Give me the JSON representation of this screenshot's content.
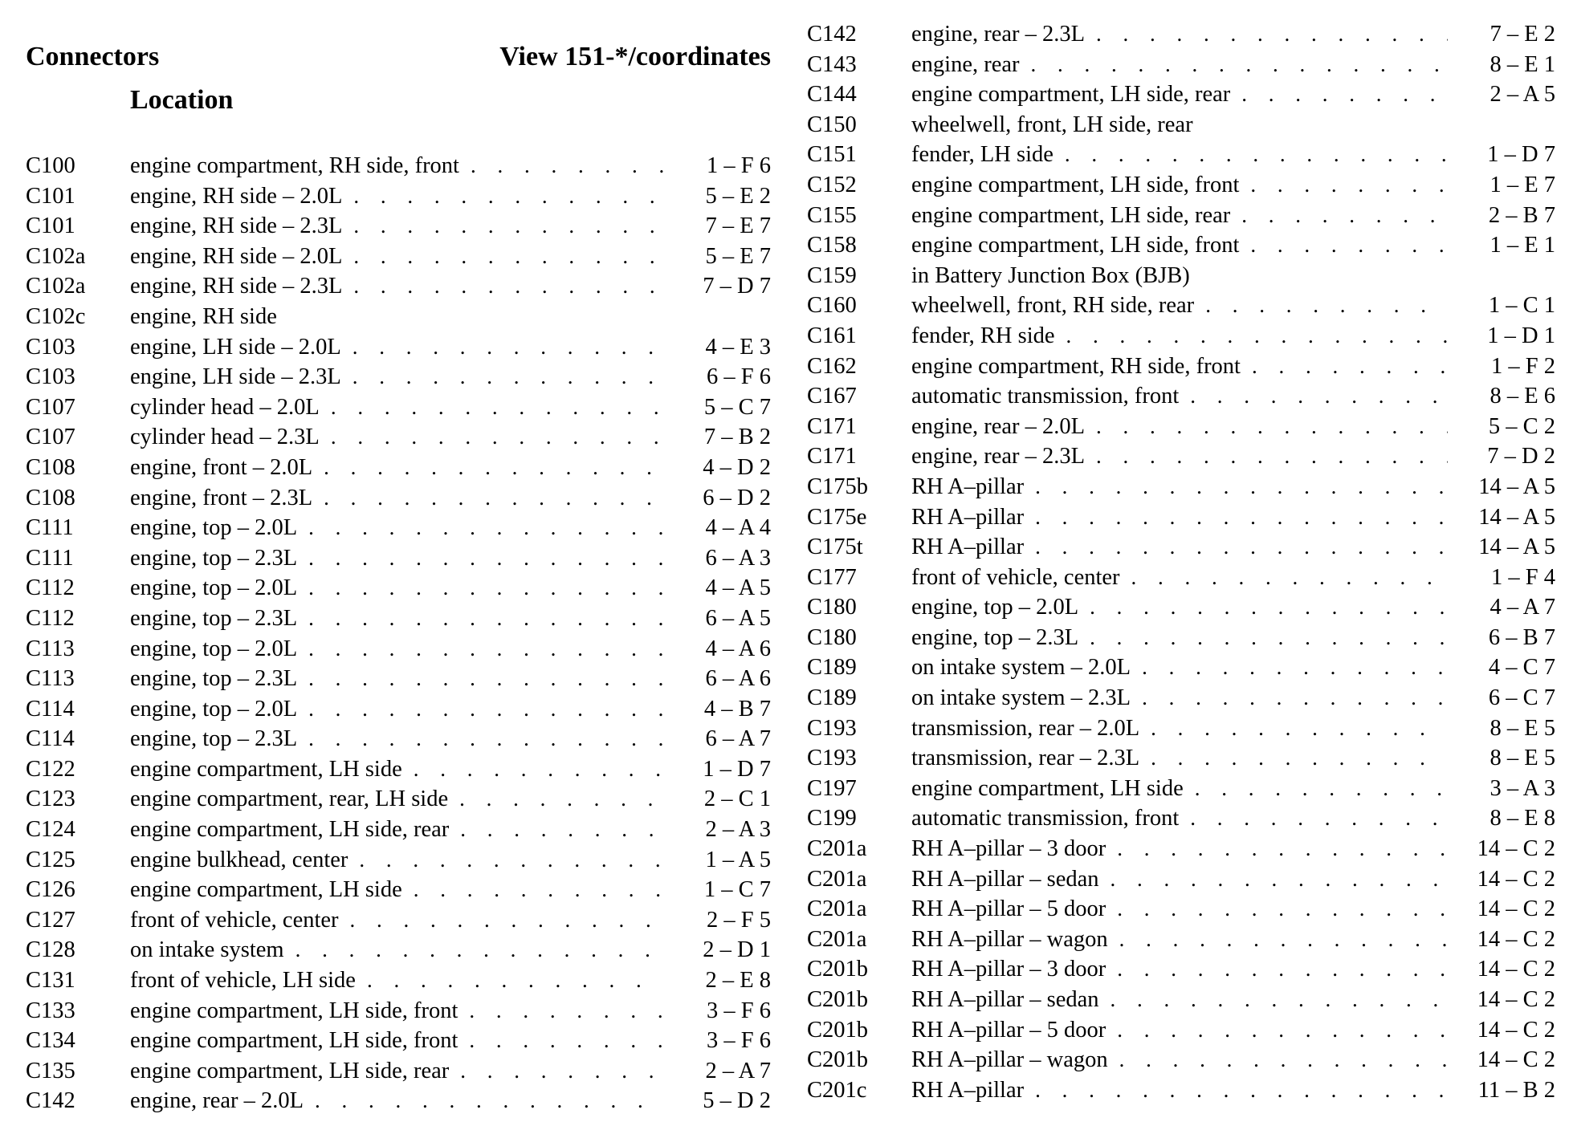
{
  "header": {
    "left_title": "Connectors",
    "right_title": "View 151-*/coordinates",
    "location_label": "Location"
  },
  "left_rows": [
    {
      "id": "C100",
      "location": "engine compartment, RH side, front",
      "coord": "1 – F 6"
    },
    {
      "id": "C101",
      "location": "engine, RH side – 2.0L",
      "coord": "5 – E 2"
    },
    {
      "id": "C101",
      "location": "engine, RH side – 2.3L",
      "coord": "7 – E 7"
    },
    {
      "id": "C102a",
      "location": "engine, RH side – 2.0L",
      "coord": "5 – E 7"
    },
    {
      "id": "C102a",
      "location": "engine, RH side – 2.3L",
      "coord": "7 – D 7"
    },
    {
      "id": "C102c",
      "location": "engine, RH side",
      "coord": ""
    },
    {
      "id": "C103",
      "location": "engine, LH side – 2.0L",
      "coord": "4 – E 3"
    },
    {
      "id": "C103",
      "location": "engine, LH side – 2.3L",
      "coord": "6 – F 6"
    },
    {
      "id": "C107",
      "location": "cylinder head – 2.0L",
      "coord": "5 – C 7"
    },
    {
      "id": "C107",
      "location": "cylinder head – 2.3L",
      "coord": "7 – B 2"
    },
    {
      "id": "C108",
      "location": "engine, front – 2.0L",
      "coord": "4 – D 2"
    },
    {
      "id": "C108",
      "location": "engine, front – 2.3L",
      "coord": "6 – D 2"
    },
    {
      "id": "C111",
      "location": "engine, top – 2.0L",
      "coord": "4 – A 4"
    },
    {
      "id": "C111",
      "location": "engine, top – 2.3L",
      "coord": "6 – A 3"
    },
    {
      "id": "C112",
      "location": "engine, top – 2.0L",
      "coord": "4 – A 5"
    },
    {
      "id": "C112",
      "location": "engine, top – 2.3L",
      "coord": "6 – A 5"
    },
    {
      "id": "C113",
      "location": "engine, top – 2.0L",
      "coord": "4 – A 6"
    },
    {
      "id": "C113",
      "location": "engine, top – 2.3L",
      "coord": "6 – A 6"
    },
    {
      "id": "C114",
      "location": "engine, top – 2.0L",
      "coord": "4 – B 7"
    },
    {
      "id": "C114",
      "location": "engine, top – 2.3L",
      "coord": "6 – A 7"
    },
    {
      "id": "C122",
      "location": "engine compartment, LH side",
      "coord": "1 – D 7"
    },
    {
      "id": "C123",
      "location": "engine compartment, rear, LH side",
      "coord": "2 – C 1"
    },
    {
      "id": "C124",
      "location": "engine compartment, LH side, rear",
      "coord": "2 – A 3"
    },
    {
      "id": "C125",
      "location": "engine bulkhead, center",
      "coord": "1 – A 5"
    },
    {
      "id": "C126",
      "location": "engine compartment, LH side",
      "coord": "1 – C 7"
    },
    {
      "id": "C127",
      "location": "front of vehicle, center",
      "coord": "2 – F 5"
    },
    {
      "id": "C128",
      "location": "on intake system",
      "coord": "2 – D 1"
    },
    {
      "id": "C131",
      "location": "front of vehicle, LH side",
      "coord": "2 – E 8"
    },
    {
      "id": "C133",
      "location": "engine compartment, LH side, front",
      "coord": "3 – F 6"
    },
    {
      "id": "C134",
      "location": "engine compartment, LH side, front",
      "coord": "3 – F 6"
    },
    {
      "id": "C135",
      "location": "engine compartment, LH side, rear",
      "coord": "2 – A 7"
    },
    {
      "id": "C142",
      "location": "engine, rear – 2.0L",
      "coord": "5 – D 2"
    }
  ],
  "right_rows": [
    {
      "id": "C142",
      "location": "engine, rear – 2.3L",
      "coord": "7 – E 2"
    },
    {
      "id": "C143",
      "location": "engine, rear",
      "coord": "8 – E 1"
    },
    {
      "id": "C144",
      "location": "engine compartment, LH side, rear",
      "coord": "2 – A 5"
    },
    {
      "id": "C150",
      "location": "wheelwell, front, LH side, rear",
      "coord": ""
    },
    {
      "id": "C151",
      "location": "fender, LH side",
      "coord": "1 – D 7"
    },
    {
      "id": "C152",
      "location": "engine compartment, LH side, front",
      "coord": "1 – E 7"
    },
    {
      "id": "C155",
      "location": "engine compartment, LH side, rear",
      "coord": "2 – B 7"
    },
    {
      "id": "C158",
      "location": "engine compartment, LH side, front",
      "coord": "1 – E 1"
    },
    {
      "id": "C159",
      "location": "in Battery Junction Box (BJB)",
      "coord": ""
    },
    {
      "id": "C160",
      "location": "wheelwell, front, RH side, rear",
      "coord": "1 – C 1"
    },
    {
      "id": "C161",
      "location": "fender, RH side",
      "coord": "1 – D 1"
    },
    {
      "id": "C162",
      "location": "engine compartment, RH side, front",
      "coord": "1 – F 2"
    },
    {
      "id": "C167",
      "location": "automatic transmission, front",
      "coord": "8 – E 6"
    },
    {
      "id": "C171",
      "location": "engine, rear – 2.0L",
      "coord": "5 – C 2"
    },
    {
      "id": "C171",
      "location": "engine, rear – 2.3L",
      "coord": "7 – D 2"
    },
    {
      "id": "C175b",
      "location": "RH A–pillar",
      "coord": "14 – A 5"
    },
    {
      "id": "C175e",
      "location": "RH A–pillar",
      "coord": "14 – A 5"
    },
    {
      "id": "C175t",
      "location": "RH A–pillar",
      "coord": "14 – A 5"
    },
    {
      "id": "C177",
      "location": "front of vehicle, center",
      "coord": "1 – F 4"
    },
    {
      "id": "C180",
      "location": "engine, top – 2.0L",
      "coord": "4 – A 7"
    },
    {
      "id": "C180",
      "location": "engine, top – 2.3L",
      "coord": "6 – B 7"
    },
    {
      "id": "C189",
      "location": "on intake system – 2.0L",
      "coord": "4 – C 7"
    },
    {
      "id": "C189",
      "location": "on intake system – 2.3L",
      "coord": "6 – C 7"
    },
    {
      "id": "C193",
      "location": "transmission, rear – 2.0L",
      "coord": "8 – E 5"
    },
    {
      "id": "C193",
      "location": "transmission, rear – 2.3L",
      "coord": "8 – E 5"
    },
    {
      "id": "C197",
      "location": "engine compartment, LH side",
      "coord": "3 – A 3"
    },
    {
      "id": "C199",
      "location": "automatic transmission, front",
      "coord": "8 – E 8"
    },
    {
      "id": "C201a",
      "location": "RH A–pillar – 3 door",
      "coord": "14 – C 2"
    },
    {
      "id": "C201a",
      "location": "RH A–pillar – sedan",
      "coord": "14 – C 2"
    },
    {
      "id": "C201a",
      "location": "RH A–pillar – 5 door",
      "coord": "14 – C 2"
    },
    {
      "id": "C201a",
      "location": "RH A–pillar – wagon",
      "coord": "14 – C 2"
    },
    {
      "id": "C201b",
      "location": "RH A–pillar – 3 door",
      "coord": "14 – C 2"
    },
    {
      "id": "C201b",
      "location": "RH A–pillar – sedan",
      "coord": "14 – C 2"
    },
    {
      "id": "C201b",
      "location": "RH A–pillar – 5 door",
      "coord": "14 – C 2"
    },
    {
      "id": "C201b",
      "location": "RH A–pillar – wagon",
      "coord": "14 – C 2"
    },
    {
      "id": "C201c",
      "location": "RH A–pillar",
      "coord": "11 – B 2"
    }
  ]
}
